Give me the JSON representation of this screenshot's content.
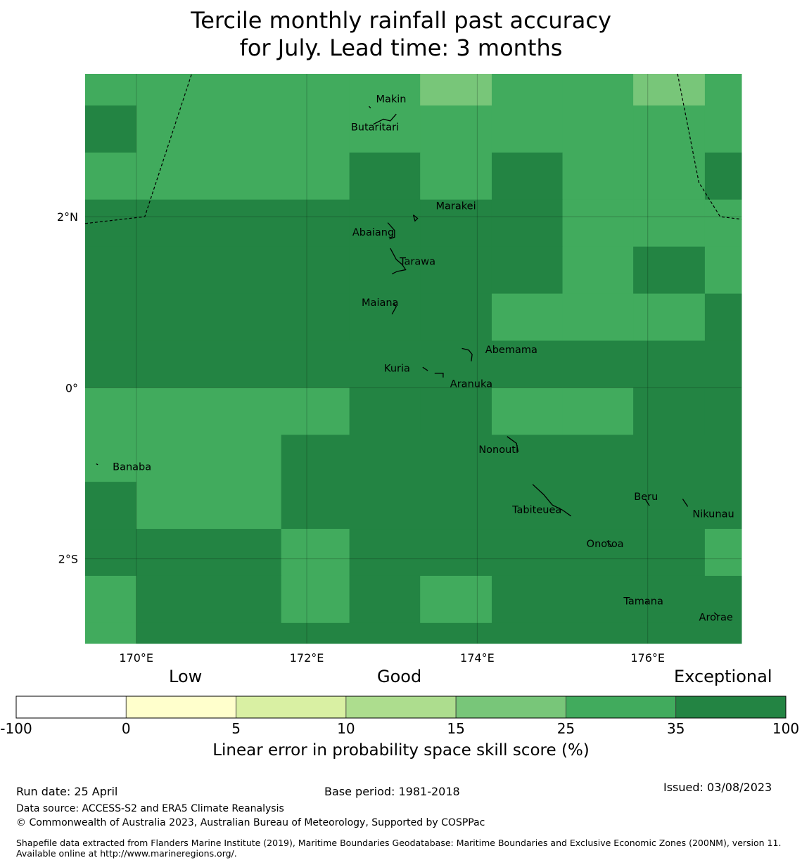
{
  "title": {
    "line1": "Tercile monthly rainfall past accuracy",
    "line2": "for July. Lead time: 3 months"
  },
  "map": {
    "lon_range": [
      169.4,
      177.1
    ],
    "lat_range": [
      -2.99,
      3.67
    ],
    "grid_lons": [
      170,
      172,
      174,
      176
    ],
    "grid_lats": [
      2,
      0,
      -2
    ],
    "lon_tick_labels": [
      "170°E",
      "172°E",
      "174°E",
      "176°E"
    ],
    "lat_tick_labels": [
      "2°N",
      "0°",
      "2°S"
    ],
    "cells": [
      {
        "lon0": 169.4,
        "lon1": 170.0,
        "lat0": 3.3,
        "lat1": 3.67,
        "level": 5
      },
      {
        "lon0": 170.0,
        "lon1": 171.7,
        "lat0": 3.3,
        "lat1": 3.67,
        "level": 5
      },
      {
        "lon0": 171.7,
        "lon1": 172.5,
        "lat0": 3.3,
        "lat1": 3.67,
        "level": 5
      },
      {
        "lon0": 172.5,
        "lon1": 173.33,
        "lat0": 3.3,
        "lat1": 3.67,
        "level": 5
      },
      {
        "lon0": 173.33,
        "lon1": 174.17,
        "lat0": 3.3,
        "lat1": 3.67,
        "level": 4
      },
      {
        "lon0": 174.17,
        "lon1": 175.0,
        "lat0": 3.3,
        "lat1": 3.67,
        "level": 5
      },
      {
        "lon0": 175.0,
        "lon1": 175.83,
        "lat0": 3.3,
        "lat1": 3.67,
        "level": 5
      },
      {
        "lon0": 175.83,
        "lon1": 176.67,
        "lat0": 3.3,
        "lat1": 3.67,
        "level": 4
      },
      {
        "lon0": 176.67,
        "lon1": 177.1,
        "lat0": 3.3,
        "lat1": 3.67,
        "level": 5
      },
      {
        "lon0": 169.4,
        "lon1": 170.0,
        "lat0": 2.75,
        "lat1": 3.3,
        "level": 6
      },
      {
        "lon0": 170.0,
        "lon1": 171.7,
        "lat0": 2.75,
        "lat1": 3.3,
        "level": 5
      },
      {
        "lon0": 171.7,
        "lon1": 172.5,
        "lat0": 2.75,
        "lat1": 3.3,
        "level": 5
      },
      {
        "lon0": 172.5,
        "lon1": 173.33,
        "lat0": 2.75,
        "lat1": 3.3,
        "level": 5
      },
      {
        "lon0": 173.33,
        "lon1": 174.17,
        "lat0": 2.75,
        "lat1": 3.3,
        "level": 5
      },
      {
        "lon0": 174.17,
        "lon1": 175.0,
        "lat0": 2.75,
        "lat1": 3.3,
        "level": 5
      },
      {
        "lon0": 175.0,
        "lon1": 175.83,
        "lat0": 2.75,
        "lat1": 3.3,
        "level": 5
      },
      {
        "lon0": 175.83,
        "lon1": 176.67,
        "lat0": 2.75,
        "lat1": 3.3,
        "level": 5
      },
      {
        "lon0": 176.67,
        "lon1": 177.1,
        "lat0": 2.75,
        "lat1": 3.3,
        "level": 5
      },
      {
        "lon0": 169.4,
        "lon1": 170.0,
        "lat0": 2.2,
        "lat1": 2.75,
        "level": 5
      },
      {
        "lon0": 170.0,
        "lon1": 171.7,
        "lat0": 2.2,
        "lat1": 2.75,
        "level": 5
      },
      {
        "lon0": 171.7,
        "lon1": 172.5,
        "lat0": 2.2,
        "lat1": 2.75,
        "level": 5
      },
      {
        "lon0": 172.5,
        "lon1": 173.33,
        "lat0": 2.2,
        "lat1": 2.75,
        "level": 6
      },
      {
        "lon0": 173.33,
        "lon1": 174.17,
        "lat0": 2.2,
        "lat1": 2.75,
        "level": 5
      },
      {
        "lon0": 174.17,
        "lon1": 175.0,
        "lat0": 2.2,
        "lat1": 2.75,
        "level": 6
      },
      {
        "lon0": 175.0,
        "lon1": 175.83,
        "lat0": 2.2,
        "lat1": 2.75,
        "level": 5
      },
      {
        "lon0": 175.83,
        "lon1": 176.67,
        "lat0": 2.2,
        "lat1": 2.75,
        "level": 5
      },
      {
        "lon0": 176.67,
        "lon1": 177.1,
        "lat0": 2.2,
        "lat1": 2.75,
        "level": 6
      },
      {
        "lon0": 169.4,
        "lon1": 170.0,
        "lat0": 1.65,
        "lat1": 2.2,
        "level": 6
      },
      {
        "lon0": 170.0,
        "lon1": 171.7,
        "lat0": 1.65,
        "lat1": 2.2,
        "level": 6
      },
      {
        "lon0": 171.7,
        "lon1": 172.5,
        "lat0": 1.65,
        "lat1": 2.2,
        "level": 6
      },
      {
        "lon0": 172.5,
        "lon1": 173.33,
        "lat0": 1.65,
        "lat1": 2.2,
        "level": 6
      },
      {
        "lon0": 173.33,
        "lon1": 174.17,
        "lat0": 1.65,
        "lat1": 2.2,
        "level": 6
      },
      {
        "lon0": 174.17,
        "lon1": 175.0,
        "lat0": 1.65,
        "lat1": 2.2,
        "level": 6
      },
      {
        "lon0": 175.0,
        "lon1": 175.83,
        "lat0": 1.65,
        "lat1": 2.2,
        "level": 5
      },
      {
        "lon0": 175.83,
        "lon1": 176.67,
        "lat0": 1.65,
        "lat1": 2.2,
        "level": 5
      },
      {
        "lon0": 176.67,
        "lon1": 177.1,
        "lat0": 1.65,
        "lat1": 2.2,
        "level": 5
      },
      {
        "lon0": 169.4,
        "lon1": 170.0,
        "lat0": 1.1,
        "lat1": 1.65,
        "level": 6
      },
      {
        "lon0": 170.0,
        "lon1": 171.7,
        "lat0": 1.1,
        "lat1": 1.65,
        "level": 6
      },
      {
        "lon0": 171.7,
        "lon1": 172.5,
        "lat0": 1.1,
        "lat1": 1.65,
        "level": 6
      },
      {
        "lon0": 172.5,
        "lon1": 173.33,
        "lat0": 1.1,
        "lat1": 1.65,
        "level": 6
      },
      {
        "lon0": 173.33,
        "lon1": 174.17,
        "lat0": 1.1,
        "lat1": 1.65,
        "level": 6
      },
      {
        "lon0": 174.17,
        "lon1": 175.0,
        "lat0": 1.1,
        "lat1": 1.65,
        "level": 6
      },
      {
        "lon0": 175.0,
        "lon1": 175.83,
        "lat0": 1.1,
        "lat1": 1.65,
        "level": 5
      },
      {
        "lon0": 175.83,
        "lon1": 176.67,
        "lat0": 1.1,
        "lat1": 1.65,
        "level": 6
      },
      {
        "lon0": 176.67,
        "lon1": 177.1,
        "lat0": 1.1,
        "lat1": 1.65,
        "level": 5
      },
      {
        "lon0": 169.4,
        "lon1": 170.0,
        "lat0": 0.55,
        "lat1": 1.1,
        "level": 6
      },
      {
        "lon0": 170.0,
        "lon1": 171.7,
        "lat0": 0.55,
        "lat1": 1.1,
        "level": 6
      },
      {
        "lon0": 171.7,
        "lon1": 172.5,
        "lat0": 0.55,
        "lat1": 1.1,
        "level": 6
      },
      {
        "lon0": 172.5,
        "lon1": 173.33,
        "lat0": 0.55,
        "lat1": 1.1,
        "level": 6
      },
      {
        "lon0": 173.33,
        "lon1": 174.17,
        "lat0": 0.55,
        "lat1": 1.1,
        "level": 6
      },
      {
        "lon0": 174.17,
        "lon1": 175.0,
        "lat0": 0.55,
        "lat1": 1.1,
        "level": 5
      },
      {
        "lon0": 175.0,
        "lon1": 175.83,
        "lat0": 0.55,
        "lat1": 1.1,
        "level": 5
      },
      {
        "lon0": 175.83,
        "lon1": 176.67,
        "lat0": 0.55,
        "lat1": 1.1,
        "level": 5
      },
      {
        "lon0": 176.67,
        "lon1": 177.1,
        "lat0": 0.55,
        "lat1": 1.1,
        "level": 6
      },
      {
        "lon0": 169.4,
        "lon1": 177.1,
        "lat0": 0.0,
        "lat1": 0.55,
        "level": 6
      },
      {
        "lon0": 169.4,
        "lon1": 170.0,
        "lat0": -0.55,
        "lat1": 0.0,
        "level": 5
      },
      {
        "lon0": 170.0,
        "lon1": 171.7,
        "lat0": -0.55,
        "lat1": 0.0,
        "level": 5
      },
      {
        "lon0": 171.7,
        "lon1": 172.5,
        "lat0": -0.55,
        "lat1": 0.0,
        "level": 5
      },
      {
        "lon0": 172.5,
        "lon1": 173.33,
        "lat0": -0.55,
        "lat1": 0.0,
        "level": 6
      },
      {
        "lon0": 173.33,
        "lon1": 174.17,
        "lat0": -0.55,
        "lat1": 0.0,
        "level": 6
      },
      {
        "lon0": 174.17,
        "lon1": 175.0,
        "lat0": -0.55,
        "lat1": 0.0,
        "level": 5
      },
      {
        "lon0": 175.0,
        "lon1": 175.83,
        "lat0": -0.55,
        "lat1": 0.0,
        "level": 5
      },
      {
        "lon0": 175.83,
        "lon1": 176.67,
        "lat0": -0.55,
        "lat1": 0.0,
        "level": 6
      },
      {
        "lon0": 176.67,
        "lon1": 177.1,
        "lat0": -0.55,
        "lat1": 0.0,
        "level": 6
      },
      {
        "lon0": 169.4,
        "lon1": 170.0,
        "lat0": -1.1,
        "lat1": -0.55,
        "level": 5
      },
      {
        "lon0": 170.0,
        "lon1": 171.7,
        "lat0": -1.1,
        "lat1": -0.55,
        "level": 5
      },
      {
        "lon0": 171.7,
        "lon1": 177.1,
        "lat0": -1.1,
        "lat1": -0.55,
        "level": 6
      },
      {
        "lon0": 169.4,
        "lon1": 170.0,
        "lat0": -1.65,
        "lat1": -1.1,
        "level": 6
      },
      {
        "lon0": 170.0,
        "lon1": 171.7,
        "lat0": -1.65,
        "lat1": -1.1,
        "level": 5
      },
      {
        "lon0": 171.7,
        "lon1": 177.1,
        "lat0": -1.65,
        "lat1": -1.1,
        "level": 6
      },
      {
        "lon0": 169.4,
        "lon1": 171.7,
        "lat0": -2.2,
        "lat1": -1.65,
        "level": 6
      },
      {
        "lon0": 171.7,
        "lon1": 172.5,
        "lat0": -2.2,
        "lat1": -1.65,
        "level": 5
      },
      {
        "lon0": 172.5,
        "lon1": 176.67,
        "lat0": -2.2,
        "lat1": -1.65,
        "level": 6
      },
      {
        "lon0": 176.67,
        "lon1": 177.1,
        "lat0": -2.2,
        "lat1": -1.65,
        "level": 5
      },
      {
        "lon0": 169.4,
        "lon1": 170.0,
        "lat0": -2.75,
        "lat1": -2.2,
        "level": 5
      },
      {
        "lon0": 170.0,
        "lon1": 171.7,
        "lat0": -2.75,
        "lat1": -2.2,
        "level": 6
      },
      {
        "lon0": 171.7,
        "lon1": 172.5,
        "lat0": -2.75,
        "lat1": -2.2,
        "level": 5
      },
      {
        "lon0": 172.5,
        "lon1": 173.33,
        "lat0": -2.75,
        "lat1": -2.2,
        "level": 6
      },
      {
        "lon0": 173.33,
        "lon1": 174.17,
        "lat0": -2.75,
        "lat1": -2.2,
        "level": 5
      },
      {
        "lon0": 174.17,
        "lon1": 177.1,
        "lat0": -2.75,
        "lat1": -2.2,
        "level": 6
      },
      {
        "lon0": 169.4,
        "lon1": 170.0,
        "lat0": -2.99,
        "lat1": -2.75,
        "level": 5
      },
      {
        "lon0": 170.0,
        "lon1": 177.1,
        "lat0": -2.99,
        "lat1": -2.75,
        "level": 6
      }
    ],
    "boundaries": [
      [
        [
          169.4,
          1.92
        ],
        [
          170.1,
          2.0
        ],
        [
          170.65,
          3.67
        ]
      ],
      [
        [
          176.35,
          3.67
        ],
        [
          176.6,
          2.4
        ],
        [
          176.85,
          2.0
        ],
        [
          177.1,
          1.97
        ]
      ]
    ],
    "islands": [
      {
        "name": "Makin",
        "lon": 172.99,
        "lat": 3.37,
        "shape": [
          [
            172.75,
            3.27
          ],
          [
            172.73,
            3.29
          ]
        ]
      },
      {
        "name": "Butaritari",
        "lon": 172.8,
        "lat": 3.04,
        "shape": [
          [
            172.78,
            3.08
          ],
          [
            172.9,
            3.14
          ],
          [
            172.98,
            3.12
          ],
          [
            173.05,
            3.2
          ]
        ]
      },
      {
        "name": "Marakei",
        "lon": 173.75,
        "lat": 2.12,
        "shape": [
          [
            173.25,
            2.02
          ],
          [
            173.3,
            1.98
          ],
          [
            173.27,
            1.95
          ],
          [
            173.25,
            2.02
          ]
        ]
      },
      {
        "name": "Abaiang",
        "lon": 172.78,
        "lat": 1.81,
        "shape": [
          [
            172.95,
            1.93
          ],
          [
            173.03,
            1.84
          ],
          [
            173.03,
            1.76
          ],
          [
            172.97,
            1.74
          ]
        ]
      },
      {
        "name": "Tarawa",
        "lon": 173.3,
        "lat": 1.47,
        "shape": [
          [
            172.98,
            1.63
          ],
          [
            173.05,
            1.5
          ],
          [
            173.12,
            1.44
          ],
          [
            173.16,
            1.38
          ],
          [
            173.06,
            1.36
          ],
          [
            173.0,
            1.33
          ]
        ]
      },
      {
        "name": "Maiana",
        "lon": 172.86,
        "lat": 0.99,
        "shape": [
          [
            173.02,
            0.99
          ],
          [
            173.05,
            0.95
          ],
          [
            173.0,
            0.86
          ]
        ]
      },
      {
        "name": "Abemama",
        "lon": 174.4,
        "lat": 0.44,
        "shape": [
          [
            173.82,
            0.46
          ],
          [
            173.9,
            0.44
          ],
          [
            173.94,
            0.39
          ],
          [
            173.93,
            0.31
          ]
        ]
      },
      {
        "name": "Kuria",
        "lon": 173.06,
        "lat": 0.22,
        "shape": [
          [
            173.36,
            0.24
          ],
          [
            173.42,
            0.2
          ]
        ]
      },
      {
        "name": "Aranuka",
        "lon": 173.93,
        "lat": 0.04,
        "shape": [
          [
            173.5,
            0.17
          ],
          [
            173.6,
            0.17
          ],
          [
            173.6,
            0.12
          ]
        ]
      },
      {
        "name": "Nonouti",
        "lon": 174.25,
        "lat": -0.73,
        "shape": [
          [
            174.35,
            -0.57
          ],
          [
            174.46,
            -0.65
          ],
          [
            174.48,
            -0.75
          ]
        ]
      },
      {
        "name": "Banaba",
        "lon": 169.95,
        "lat": -0.93,
        "shape": [
          [
            169.53,
            -0.89
          ],
          [
            169.55,
            -0.9
          ]
        ]
      },
      {
        "name": "Tabiteuea",
        "lon": 174.7,
        "lat": -1.43,
        "shape": [
          [
            174.65,
            -1.13
          ],
          [
            174.78,
            -1.25
          ],
          [
            174.88,
            -1.37
          ],
          [
            175.0,
            -1.43
          ],
          [
            175.1,
            -1.5
          ]
        ]
      },
      {
        "name": "Beru",
        "lon": 175.98,
        "lat": -1.28,
        "shape": [
          [
            175.97,
            -1.3
          ],
          [
            176.02,
            -1.38
          ]
        ]
      },
      {
        "name": "Nikunau",
        "lon": 176.77,
        "lat": -1.48,
        "shape": [
          [
            176.41,
            -1.3
          ],
          [
            176.47,
            -1.39
          ]
        ]
      },
      {
        "name": "Onotoa",
        "lon": 175.5,
        "lat": -1.83,
        "shape": [
          [
            175.52,
            -1.79
          ],
          [
            175.58,
            -1.86
          ]
        ]
      },
      {
        "name": "Tamana",
        "lon": 175.95,
        "lat": -2.5,
        "shape": [
          [
            175.98,
            -2.5
          ],
          [
            176.0,
            -2.51
          ]
        ]
      },
      {
        "name": "Arorae",
        "lon": 176.8,
        "lat": -2.69,
        "shape": [
          [
            176.78,
            -2.63
          ],
          [
            176.83,
            -2.67
          ]
        ]
      }
    ]
  },
  "legend": {
    "categories": {
      "low": "Low",
      "good": "Good",
      "exceptional": "Exceptional"
    },
    "bins": [
      {
        "from": -100,
        "to": 0,
        "color": "#ffffff"
      },
      {
        "from": 0,
        "to": 5,
        "color": "#ffffcc"
      },
      {
        "from": 5,
        "to": 10,
        "color": "#d9f0a3"
      },
      {
        "from": 10,
        "to": 15,
        "color": "#addd8e"
      },
      {
        "from": 15,
        "to": 25,
        "color": "#78c679"
      },
      {
        "from": 25,
        "to": 35,
        "color": "#41ab5d"
      },
      {
        "from": 35,
        "to": 100,
        "color": "#238443"
      }
    ],
    "tick_labels": [
      "-100",
      "0",
      "5",
      "10",
      "15",
      "25",
      "35",
      "100"
    ],
    "label": "Linear error in probability space skill score (%)"
  },
  "footer": {
    "run_date": "Run date: 25 April",
    "base_period": "Base period: 1981-2018",
    "issued": "Issued: 03/08/2023",
    "data_source": "Data source: ACCESS-S2 and ERA5 Climate Reanalysis",
    "copyright": "© Commonwealth of Australia 2023, Australian Bureau of Meteorology, Supported by COSPPac",
    "shapefile": "Shapefile data extracted from Flanders Marine Institute (2019), Maritime Boundaries Geodatabase: Maritime Boundaries and Exclusive Economic Zones (200NM), version 11. Available online at http://www.marineregions.org/."
  }
}
